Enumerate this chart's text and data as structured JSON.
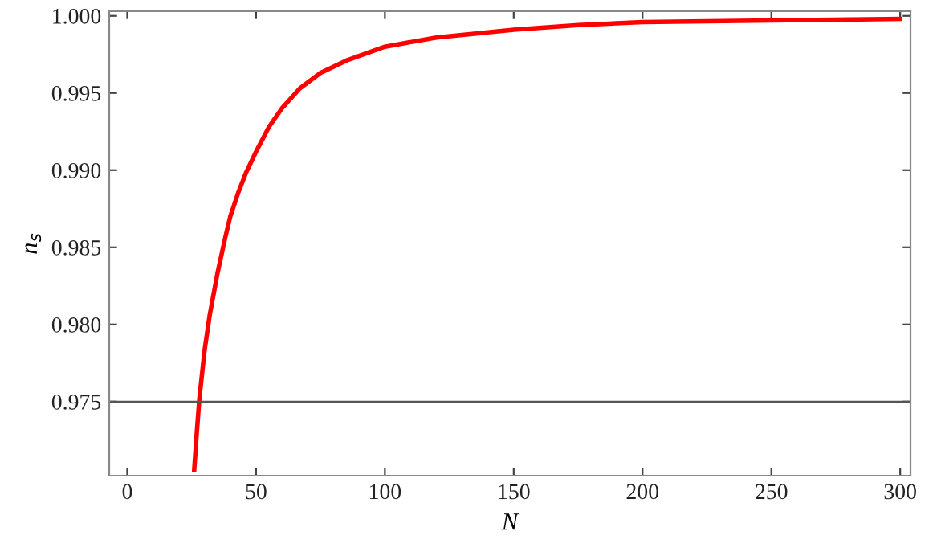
{
  "chart_data": {
    "type": "line",
    "xlabel": "N",
    "ylabel": "n$_{s}$",
    "x": [
      26,
      27,
      28,
      30,
      32,
      35,
      38,
      40,
      43,
      46,
      50,
      55,
      60,
      67,
      75,
      85,
      100,
      120,
      150,
      175,
      200,
      250,
      300
    ],
    "series": [
      {
        "color": "#ff0000",
        "values": [
          0.9706,
          0.973,
          0.9752,
          0.9783,
          0.9806,
          0.9833,
          0.9856,
          0.987,
          0.9885,
          0.9898,
          0.9912,
          0.9928,
          0.994,
          0.9953,
          0.9963,
          0.9971,
          0.998,
          0.9986,
          0.9991,
          0.9994,
          0.9996,
          0.9997,
          0.9998
        ]
      }
    ],
    "xlim": [
      -7,
      304
    ],
    "ylim": [
      0.9702,
      1.0003
    ],
    "xticks": [
      0,
      50,
      100,
      150,
      200,
      250,
      300
    ],
    "yticks": [
      {
        "value": 0.975,
        "label": "0.975"
      },
      {
        "value": 0.98,
        "label": "0.980"
      },
      {
        "value": 0.985,
        "label": "0.985"
      },
      {
        "value": 0.99,
        "label": "0.990"
      },
      {
        "value": 0.995,
        "label": "0.995"
      },
      {
        "value": 1.0,
        "label": "1.000"
      }
    ],
    "ref_lines": [
      {
        "axis": "y",
        "value": 0.975,
        "color": "#555555"
      }
    ],
    "grid": false,
    "legend": false,
    "marker": "none",
    "line_style": "solid"
  }
}
